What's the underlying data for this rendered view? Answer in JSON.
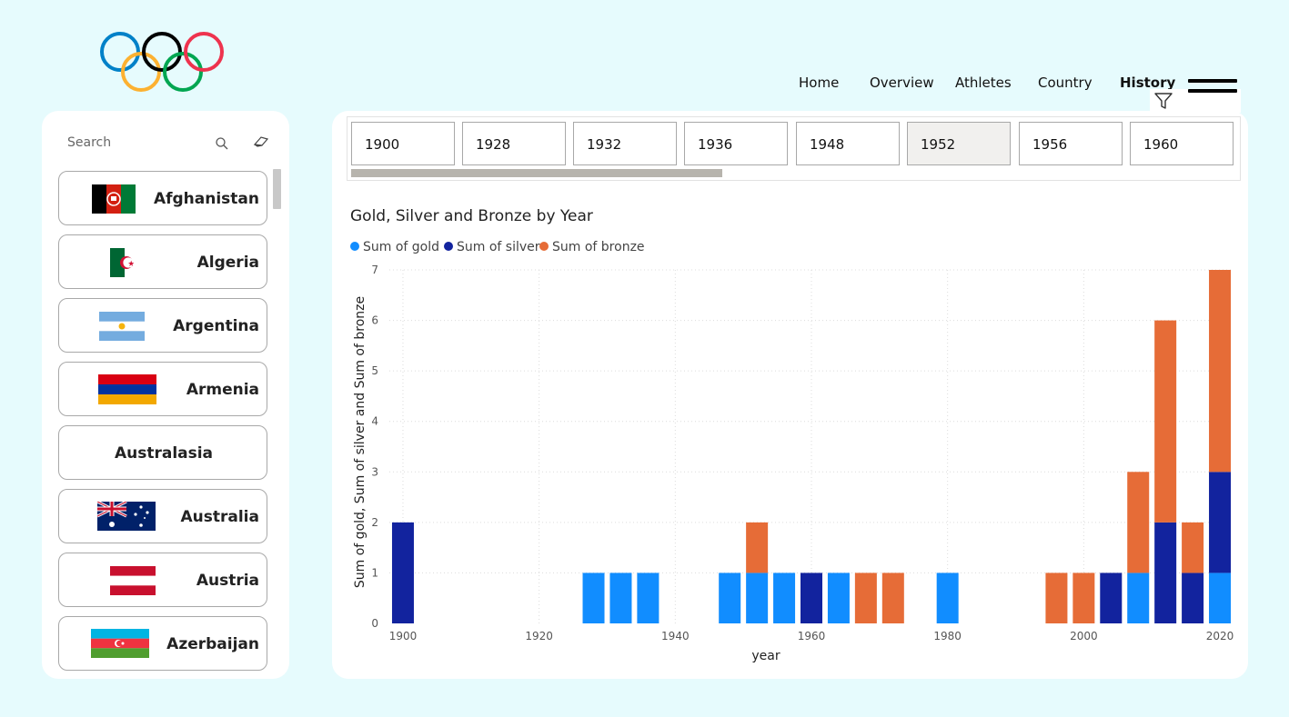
{
  "nav": {
    "items": [
      {
        "label": "Home",
        "active": false
      },
      {
        "label": "Overview",
        "active": false
      },
      {
        "label": "Athletes",
        "active": false
      },
      {
        "label": "Country",
        "active": false
      },
      {
        "label": "History",
        "active": true
      }
    ]
  },
  "search": {
    "placeholder": "Search"
  },
  "countries": [
    {
      "name": "Afghanistan",
      "flag": "afghanistan"
    },
    {
      "name": "Algeria",
      "flag": "algeria"
    },
    {
      "name": "Argentina",
      "flag": "argentina"
    },
    {
      "name": "Armenia",
      "flag": "armenia"
    },
    {
      "name": "Australasia",
      "flag": null
    },
    {
      "name": "Australia",
      "flag": "australia"
    },
    {
      "name": "Austria",
      "flag": "austria"
    },
    {
      "name": "Azerbaijan",
      "flag": "azerbaijan"
    }
  ],
  "year_slicer": {
    "years": [
      "1900",
      "1928",
      "1932",
      "1936",
      "1948",
      "1952",
      "1956",
      "1960"
    ],
    "selected": "1952"
  },
  "colors": {
    "gold": "#118DFF",
    "silver": "#12239E",
    "bronze": "#E66C37",
    "accent": "#000000"
  },
  "chart_data": {
    "type": "bar",
    "stacked": true,
    "title": "Gold, Silver and Bronze by Year",
    "xlabel": "year",
    "ylabel": "Sum of gold, Sum of silver and Sum of bronze",
    "legend_position": "top-left",
    "grid": true,
    "xlim": [
      1898,
      2022
    ],
    "ylim": [
      0,
      7
    ],
    "x_ticks": [
      1900,
      1920,
      1940,
      1960,
      1980,
      2000,
      2020
    ],
    "y_ticks": [
      0,
      1,
      2,
      3,
      4,
      5,
      6,
      7
    ],
    "x": [
      1900,
      1928,
      1932,
      1936,
      1948,
      1952,
      1956,
      1960,
      1964,
      1968,
      1972,
      1980,
      1996,
      2000,
      2004,
      2008,
      2012,
      2016,
      2020
    ],
    "series": [
      {
        "name": "Sum of gold",
        "color": "#118DFF",
        "values": [
          0,
          1,
          1,
          1,
          1,
          1,
          1,
          0,
          1,
          0,
          0,
          1,
          0,
          0,
          0,
          1,
          0,
          0,
          1
        ]
      },
      {
        "name": "Sum of silver",
        "color": "#12239E",
        "values": [
          2,
          0,
          0,
          0,
          0,
          0,
          0,
          1,
          0,
          0,
          0,
          0,
          0,
          0,
          1,
          0,
          2,
          1,
          2
        ]
      },
      {
        "name": "Sum of bronze",
        "color": "#E66C37",
        "values": [
          0,
          0,
          0,
          0,
          0,
          1,
          0,
          0,
          0,
          1,
          1,
          0,
          1,
          1,
          0,
          2,
          4,
          1,
          4
        ]
      }
    ]
  }
}
